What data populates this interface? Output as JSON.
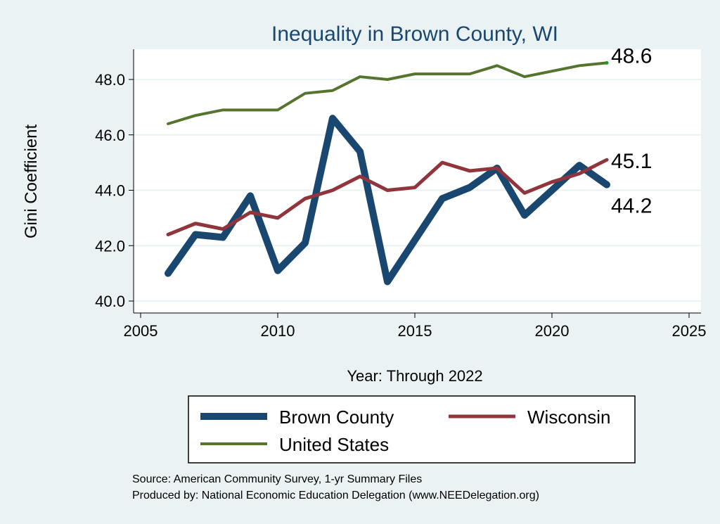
{
  "chart_data": {
    "type": "line",
    "title": "Inequality in Brown County, WI",
    "xlabel": "Year: Through 2022",
    "ylabel": "Gini Coefficient",
    "xlim": [
      2005,
      2025
    ],
    "ylim": [
      40,
      48
    ],
    "xticks": [
      "2005",
      "2010",
      "2015",
      "2020",
      "2025"
    ],
    "xtick_values": [
      2005,
      2010,
      2015,
      2020,
      2025
    ],
    "yticks": [
      "40.0",
      "42.0",
      "44.0",
      "46.0",
      "48.0"
    ],
    "ytick_values": [
      40,
      42,
      44,
      46,
      48
    ],
    "grid": true,
    "x": [
      2006,
      2007,
      2008,
      2009,
      2010,
      2011,
      2012,
      2013,
      2014,
      2015,
      2016,
      2017,
      2018,
      2019,
      2020,
      2021,
      2022
    ],
    "series": [
      {
        "name": "Brown County",
        "color": "#1a476f",
        "values": [
          41.0,
          42.4,
          42.3,
          43.8,
          41.1,
          42.1,
          46.6,
          45.4,
          40.7,
          42.2,
          43.7,
          44.1,
          44.8,
          43.1,
          44.0,
          44.9,
          44.2
        ],
        "end_label": "44.2"
      },
      {
        "name": "Wisconsin",
        "color": "#90353b",
        "values": [
          42.4,
          42.8,
          42.6,
          43.2,
          43.0,
          43.7,
          44.0,
          44.5,
          44.0,
          44.1,
          45.0,
          44.7,
          44.8,
          43.9,
          44.3,
          44.6,
          45.1
        ],
        "end_label": "45.1"
      },
      {
        "name": "United States",
        "color": "#55752f",
        "values": [
          46.4,
          46.7,
          46.9,
          46.9,
          46.9,
          47.5,
          47.6,
          48.1,
          48.0,
          48.2,
          48.2,
          48.2,
          48.5,
          48.1,
          48.3,
          48.5,
          48.6
        ],
        "end_label": "48.6"
      }
    ],
    "legend": {
      "placement": "bottom",
      "entries": [
        "Brown County",
        "Wisconsin",
        "United States"
      ]
    },
    "notes": [
      "Source: American Community Survey, 1-yr Summary Files",
      "Produced by: National Economic Education Delegation (www.NEEDelegation.org)"
    ]
  }
}
